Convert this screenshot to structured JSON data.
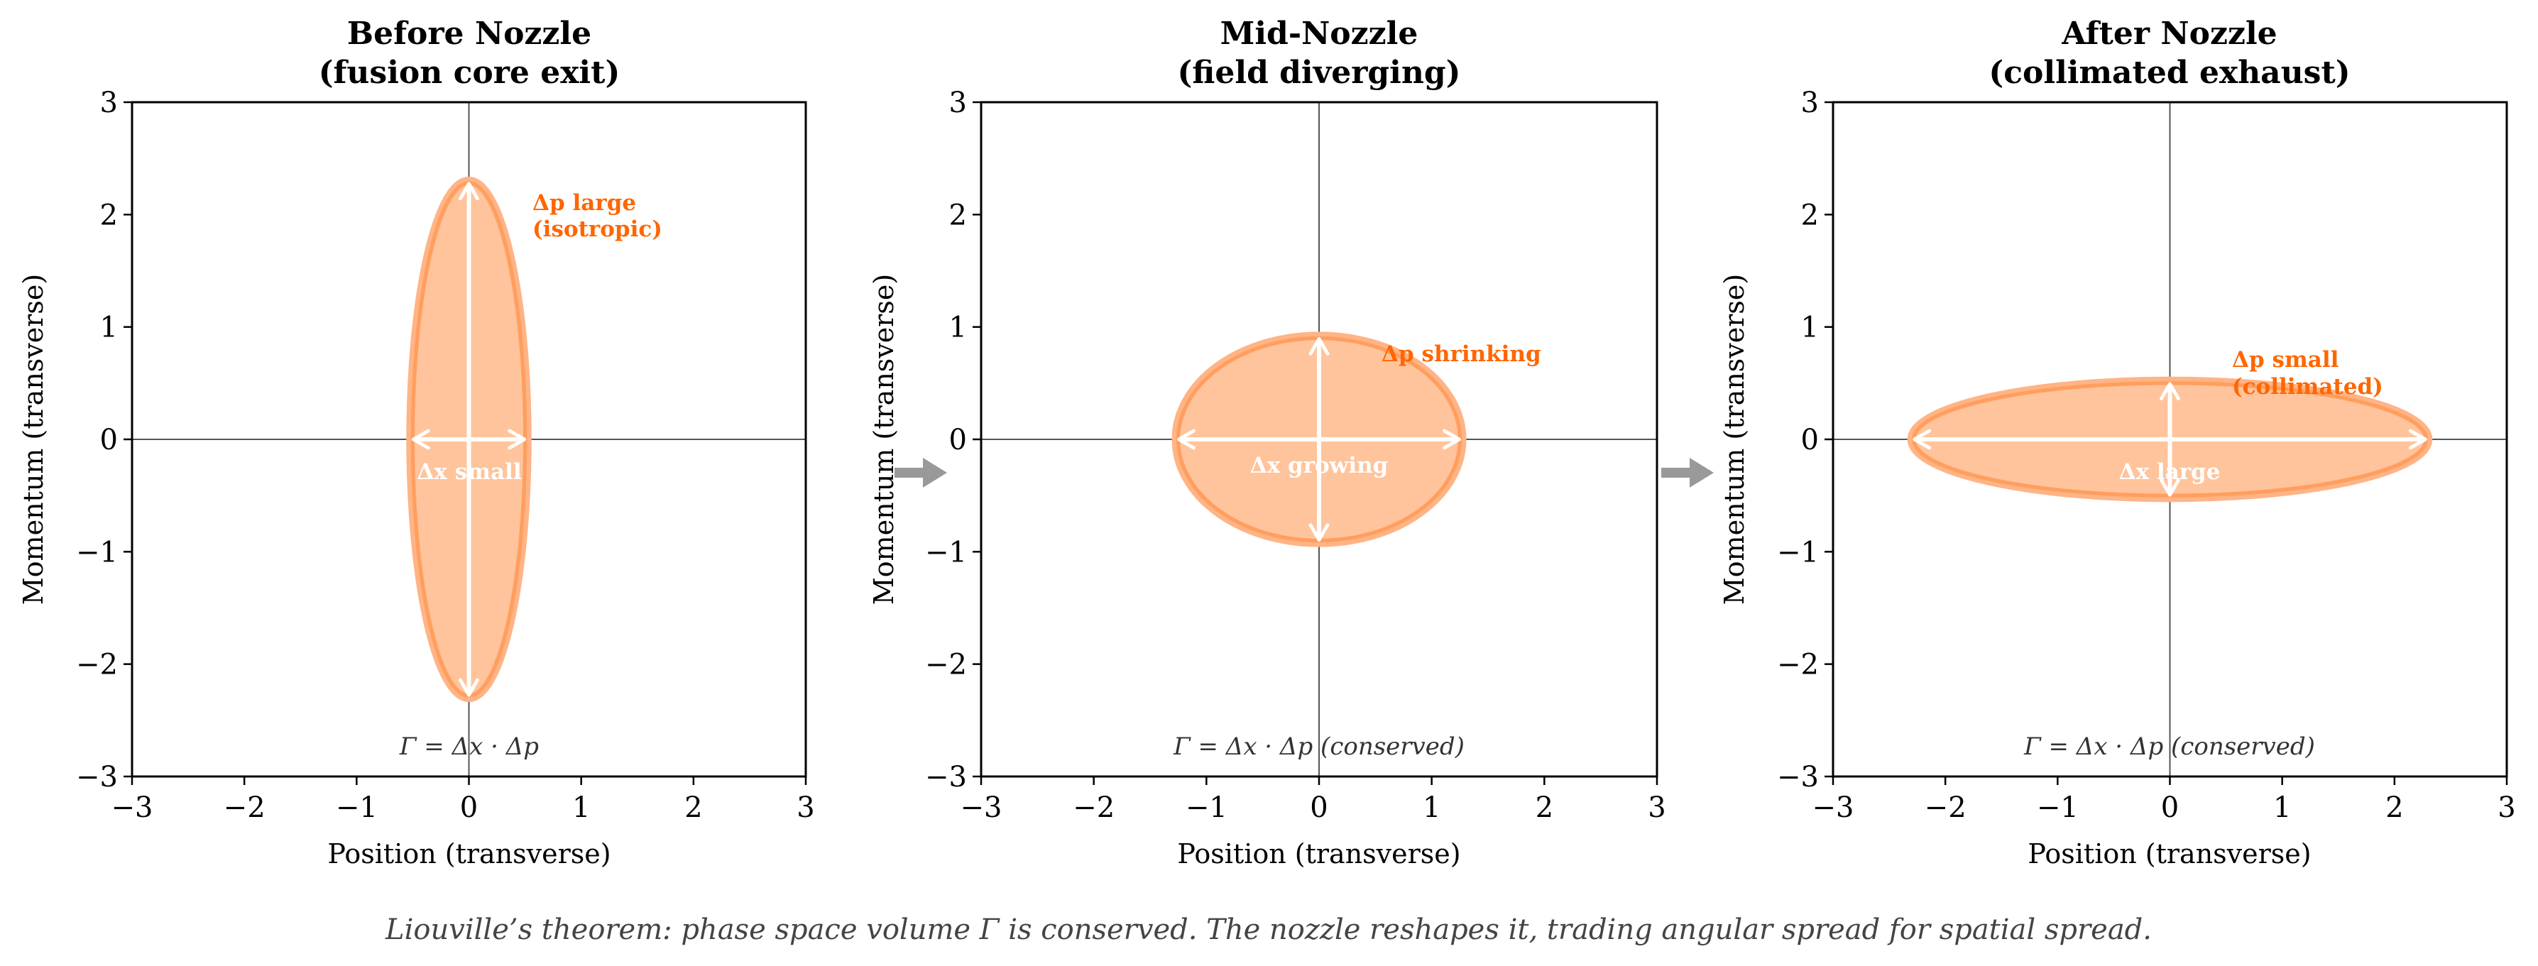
{
  "figure": {
    "caption": "Liouville’s theorem: phase space volume Γ is conserved.  The nozzle reshapes it, trading angular spread for spatial spread.",
    "colors": {
      "ellipse_fill": "#ffc49c",
      "ellipse_edge": "#ff9e5e",
      "annotation": "#ff6600",
      "arrow_white": "#ffffff",
      "flow_arrow": "#999999",
      "zero_line": "#555555"
    }
  },
  "chart_data": [
    {
      "type": "scatter",
      "title": "Before Nozzle\n(fusion core exit)",
      "title_lines": [
        "Before Nozzle",
        "(fusion core exit)"
      ],
      "xlabel": "Position (transverse)",
      "ylabel": "Momentum (transverse)",
      "xlim": [
        -3,
        3
      ],
      "ylim": [
        -3,
        3
      ],
      "xticks": [
        "−3",
        "−2",
        "−1",
        "0",
        "1",
        "2",
        "3"
      ],
      "yticks": [
        "−3",
        "−2",
        "−1",
        "0",
        "1",
        "2",
        "3"
      ],
      "grid": false,
      "ellipse": {
        "center": [
          0,
          0
        ],
        "dx": 0.52,
        "dp": 2.3
      },
      "annotations": {
        "dp_label": [
          "Δp large",
          "(isotropic)"
        ],
        "dx_label": "Δx small",
        "formula": "Γ = Δx · Δp"
      }
    },
    {
      "type": "scatter",
      "title": "Mid-Nozzle\n(field diverging)",
      "title_lines": [
        "Mid-Nozzle",
        "(field diverging)"
      ],
      "xlabel": "Position (transverse)",
      "ylabel": "Momentum (transverse)",
      "xlim": [
        -3,
        3
      ],
      "ylim": [
        -3,
        3
      ],
      "xticks": [
        "−3",
        "−2",
        "−1",
        "0",
        "1",
        "2",
        "3"
      ],
      "yticks": [
        "−3",
        "−2",
        "−1",
        "0",
        "1",
        "2",
        "3"
      ],
      "grid": false,
      "ellipse": {
        "center": [
          0,
          0
        ],
        "dx": 1.27,
        "dp": 0.92
      },
      "annotations": {
        "dp_label": [
          "Δp shrinking"
        ],
        "dx_label": "Δx growing",
        "formula": "Γ = Δx · Δp  (conserved)"
      }
    },
    {
      "type": "scatter",
      "title": "After Nozzle\n(collimated exhaust)",
      "title_lines": [
        "After Nozzle",
        "(collimated exhaust)"
      ],
      "xlabel": "Position (transverse)",
      "ylabel": "Momentum (transverse)",
      "xlim": [
        -3,
        3
      ],
      "ylim": [
        -3,
        3
      ],
      "xticks": [
        "−3",
        "−2",
        "−1",
        "0",
        "1",
        "2",
        "3"
      ],
      "yticks": [
        "−3",
        "−2",
        "−1",
        "0",
        "1",
        "2",
        "3"
      ],
      "grid": false,
      "ellipse": {
        "center": [
          0,
          0
        ],
        "dx": 2.3,
        "dp": 0.52
      },
      "annotations": {
        "dp_label": [
          "Δp small",
          "(collimated)"
        ],
        "dx_label": "Δx large",
        "formula": "Γ = Δx · Δp  (conserved)"
      }
    }
  ]
}
